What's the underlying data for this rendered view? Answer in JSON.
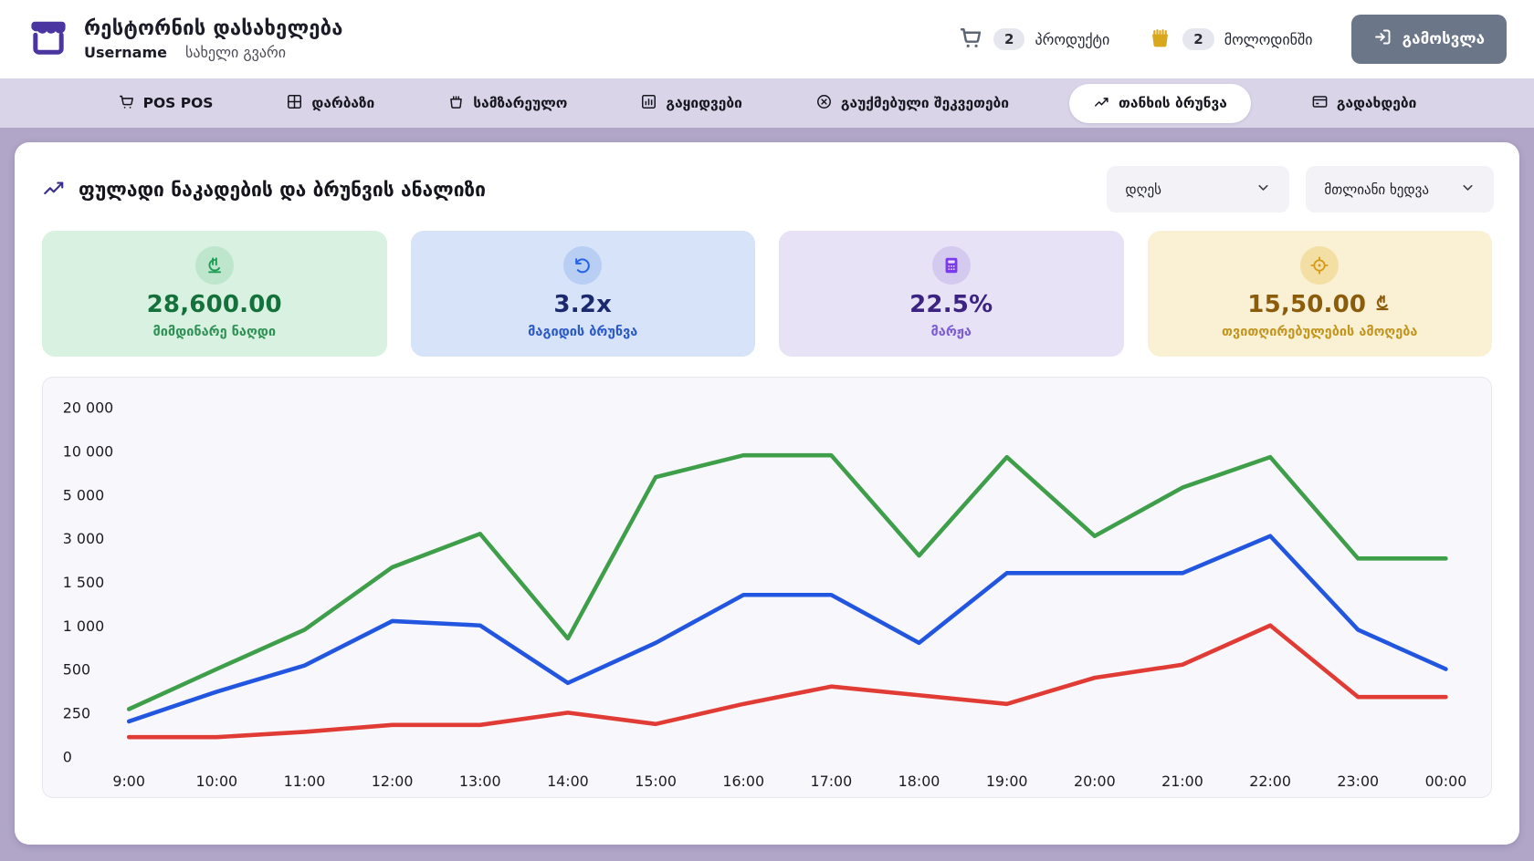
{
  "header": {
    "app_title": "რესტორნის დასახელება",
    "username": "Username",
    "user_fullname": "სახელი გვარი",
    "products": {
      "count": "2",
      "label": "პროდუქტი"
    },
    "pending": {
      "count": "2",
      "label": "მოლოდინში"
    },
    "logout_label": "გამოსვლა"
  },
  "nav": {
    "active_tab": "თანხის ბრუნვა",
    "tabs": [
      {
        "label": "POS POS",
        "icon": "cart-icon"
      },
      {
        "label": "დარბაზი",
        "icon": "grid-icon"
      },
      {
        "label": "სამზარეულო",
        "icon": "kitchen-basket-icon"
      },
      {
        "label": "გაყიდვები",
        "icon": "bar-chart-icon"
      },
      {
        "label": "გაუქმებული შეკვეთები",
        "icon": "x-circle-icon"
      },
      {
        "label": "თანხის ბრუნვა",
        "icon": "line-chart-icon"
      },
      {
        "label": "გადახდები",
        "icon": "card-icon"
      }
    ]
  },
  "analysis": {
    "title": "ფულადი ნაკადების და ბრუნვის ანალიზი",
    "filters": [
      {
        "value": "დღეს"
      },
      {
        "value": "მთლიანი ხედვა"
      }
    ],
    "stats": [
      {
        "value": "28,600.00",
        "label": "მიმდინარე ნაღდი",
        "icon": "lari-coin-icon"
      },
      {
        "value": "3.2x",
        "label": "მაგიდის ბრუნვა",
        "icon": "undo-icon"
      },
      {
        "value": "22.5%",
        "label": "მარჟა",
        "icon": "calculator-icon"
      },
      {
        "value": "15,50.00",
        "currency_symbol": "₾",
        "label": "თვითღირებულების ამოღება",
        "icon": "target-icon"
      }
    ]
  },
  "theme": {
    "page_bg": "#b1a6c8",
    "nav_bg": "#d9d4e8",
    "brand_purple": "#4b35a0",
    "logout_button": "#6b7689",
    "pending_icon_gold": "#d8a71c"
  },
  "chart_data": {
    "type": "line",
    "title": "ფულადი ნაკადების და ბრუნვის ანალიზი",
    "grid": false,
    "legend": "none",
    "y_scale": "piecewise-equal-tick-spacing",
    "y_ticks": [
      0,
      250,
      500,
      1000,
      1500,
      3000,
      5000,
      10000,
      20000
    ],
    "y_tick_labels": [
      "0",
      "250",
      "500",
      "1 000",
      "1 500",
      "3 000",
      "5 000",
      "10 000",
      "20 000"
    ],
    "x_labels": [
      "9:00",
      "10:00",
      "11:00",
      "12:00",
      "13:00",
      "14:00",
      "15:00",
      "16:00",
      "17:00",
      "18:00",
      "19:00",
      "20:00",
      "21:00",
      "22:00",
      "23:00",
      "00:00"
    ],
    "series": [
      {
        "name": "green",
        "color": "#3f9e4a",
        "values": [
          270,
          500,
          950,
          2000,
          3200,
          850,
          7000,
          9500,
          9500,
          2400,
          9300,
          3100,
          5800,
          9300,
          2300,
          2300
        ]
      },
      {
        "name": "blue",
        "color": "#2356e0",
        "values": [
          200,
          370,
          540,
          1050,
          1000,
          420,
          800,
          1350,
          1350,
          800,
          1800,
          1800,
          1800,
          3100,
          950,
          500
        ]
      },
      {
        "name": "red",
        "color": "#e13b35",
        "values": [
          110,
          110,
          140,
          180,
          180,
          250,
          185,
          300,
          400,
          350,
          300,
          450,
          550,
          1000,
          340,
          340
        ]
      }
    ]
  }
}
